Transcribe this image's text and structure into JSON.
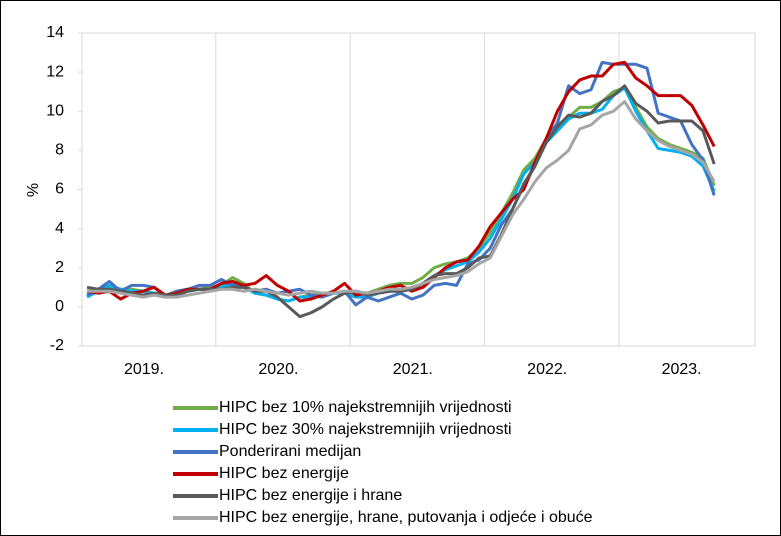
{
  "chart_data": {
    "type": "line",
    "ylabel": "%",
    "categories": [
      null,
      null,
      null,
      null,
      null,
      "2019.",
      null,
      null,
      null,
      null,
      null,
      null,
      null,
      null,
      null,
      null,
      null,
      "2020.",
      null,
      null,
      null,
      null,
      null,
      null,
      null,
      null,
      null,
      null,
      null,
      "2021.",
      null,
      null,
      null,
      null,
      null,
      null,
      null,
      null,
      null,
      null,
      null,
      "2022.",
      null,
      null,
      null,
      null,
      null,
      null,
      null,
      null,
      null,
      null,
      null,
      "2023.",
      null,
      null,
      null
    ],
    "ylim": [
      -2,
      14
    ],
    "yticks": [
      -2,
      0,
      2,
      4,
      6,
      8,
      10,
      12,
      14
    ],
    "grid": false,
    "series": [
      {
        "name": "HIPC bez 10% najekstremnijih vrijednosti",
        "color": "#70ad47",
        "values": [
          0.8,
          0.9,
          1.0,
          0.9,
          0.9,
          0.8,
          0.7,
          0.6,
          0.8,
          0.9,
          0.9,
          1.0,
          1.1,
          1.5,
          1.2,
          0.7,
          0.6,
          0.4,
          0.3,
          0.5,
          0.6,
          0.7,
          0.7,
          0.8,
          0.6,
          0.7,
          0.9,
          1.1,
          1.2,
          1.2,
          1.5,
          2.0,
          2.2,
          2.3,
          2.5,
          3.0,
          3.8,
          4.8,
          5.8,
          7.0,
          7.6,
          8.6,
          9.3,
          9.7,
          10.2,
          10.2,
          10.5,
          11.0,
          11.2,
          10.2,
          9.2,
          8.6,
          8.3,
          8.1,
          7.9,
          7.6,
          6.2
        ]
      },
      {
        "name": "HIPC bez 30% najekstremnijih vrijednosti",
        "color": "#00b0f0",
        "values": [
          0.5,
          0.8,
          1.1,
          0.9,
          0.8,
          0.8,
          0.7,
          0.6,
          0.7,
          0.8,
          0.9,
          0.9,
          1.0,
          1.2,
          1.0,
          0.7,
          0.6,
          0.4,
          0.3,
          0.5,
          0.5,
          0.6,
          0.7,
          0.7,
          0.5,
          0.5,
          0.7,
          0.8,
          0.9,
          0.9,
          1.2,
          1.6,
          1.9,
          2.1,
          2.3,
          2.8,
          3.5,
          4.5,
          5.5,
          6.8,
          7.4,
          8.4,
          9.0,
          9.6,
          9.9,
          9.9,
          10.1,
          10.8,
          11.2,
          10.0,
          9.0,
          8.1,
          8.0,
          7.9,
          7.7,
          7.2,
          5.9
        ]
      },
      {
        "name": "Ponderirani medijan",
        "color": "#4472c4",
        "values": [
          0.6,
          0.9,
          1.3,
          0.8,
          1.1,
          1.1,
          1.0,
          0.5,
          0.8,
          0.9,
          1.1,
          1.1,
          1.4,
          1.1,
          1.0,
          0.8,
          0.9,
          0.7,
          0.8,
          0.9,
          0.6,
          0.5,
          0.7,
          0.8,
          0.1,
          0.5,
          0.3,
          0.5,
          0.7,
          0.4,
          0.6,
          1.1,
          1.2,
          1.1,
          2.2,
          2.4,
          3.0,
          4.2,
          5.0,
          6.2,
          7.2,
          8.6,
          9.4,
          11.3,
          10.9,
          11.1,
          12.5,
          12.4,
          12.4,
          12.4,
          12.2,
          9.9,
          9.7,
          9.5,
          8.3,
          7.5,
          5.7
        ]
      },
      {
        "name": "HIPC bez energije",
        "color": "#c00000",
        "values": [
          0.8,
          0.7,
          0.8,
          0.4,
          0.7,
          0.8,
          1.0,
          0.6,
          0.7,
          0.9,
          0.9,
          0.9,
          1.2,
          1.3,
          1.1,
          1.2,
          1.6,
          1.1,
          0.8,
          0.3,
          0.4,
          0.6,
          0.8,
          1.2,
          0.6,
          0.7,
          0.8,
          1.0,
          1.1,
          0.8,
          1.0,
          1.5,
          2.0,
          2.3,
          2.4,
          3.1,
          4.1,
          4.8,
          5.5,
          6.0,
          7.4,
          8.6,
          10.0,
          11.0,
          11.6,
          11.8,
          11.8,
          12.4,
          12.5,
          11.7,
          11.3,
          10.8,
          10.8,
          10.8,
          10.3,
          9.3,
          8.2
        ]
      },
      {
        "name": "HIPC bez energije i hrane",
        "color": "#595959",
        "values": [
          1.0,
          0.9,
          0.9,
          0.8,
          0.7,
          0.6,
          0.7,
          0.6,
          0.6,
          0.8,
          0.9,
          0.9,
          0.9,
          1.0,
          1.0,
          0.8,
          0.8,
          0.5,
          0.0,
          -0.5,
          -0.3,
          0.0,
          0.4,
          0.7,
          0.8,
          0.6,
          0.7,
          0.8,
          0.8,
          0.9,
          1.2,
          1.6,
          1.7,
          1.7,
          2.0,
          2.5,
          2.6,
          3.7,
          5.0,
          6.3,
          7.2,
          8.4,
          9.2,
          9.8,
          9.7,
          9.9,
          10.5,
          10.8,
          11.3,
          10.4,
          10.0,
          9.4,
          9.5,
          9.5,
          9.5,
          9.0,
          7.3
        ]
      },
      {
        "name": "HIPC bez energije, hrane, putovanja i odjeće i obuće",
        "color": "#a6a6a6",
        "values": [
          0.8,
          0.8,
          0.8,
          0.7,
          0.6,
          0.5,
          0.6,
          0.5,
          0.5,
          0.6,
          0.7,
          0.8,
          0.9,
          0.9,
          0.8,
          0.9,
          0.8,
          0.7,
          0.6,
          0.7,
          0.8,
          0.7,
          0.7,
          0.8,
          0.8,
          0.7,
          0.8,
          0.9,
          0.9,
          1.0,
          1.2,
          1.4,
          1.5,
          1.6,
          1.8,
          2.2,
          2.5,
          3.6,
          4.7,
          5.5,
          6.4,
          7.1,
          7.5,
          8.0,
          9.1,
          9.3,
          9.8,
          10.0,
          10.5,
          9.6,
          9.0,
          8.5,
          8.2,
          8.0,
          7.8,
          7.4,
          6.4
        ]
      }
    ]
  }
}
